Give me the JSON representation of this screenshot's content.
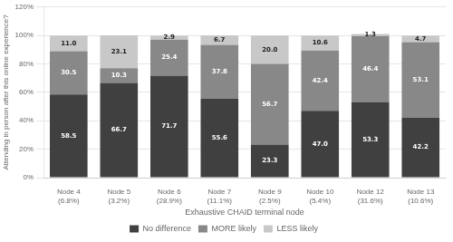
{
  "chart_data": {
    "type": "bar",
    "stacked": true,
    "categories": [
      "Node 4\n(6.8%)",
      "Node 5\n(3.2%)",
      "Node 6\n(28.9%)",
      "Node 7\n(11.1%)",
      "Node 9\n(2.5%)",
      "Node 10\n(5.4%)",
      "Node 12\n(31.6%)",
      "Node 13\n(10.6%)"
    ],
    "series": [
      {
        "name": "No difference",
        "color": "#404040",
        "values": [
          58.5,
          66.7,
          71.7,
          55.6,
          23.3,
          47.0,
          53.3,
          42.2
        ],
        "value_labels": [
          "58.5",
          "66.7",
          "71.7",
          "55.6",
          "23.3",
          "47.0",
          "53.3",
          "42.2"
        ]
      },
      {
        "name": "MORE likely",
        "color": "#888888",
        "values": [
          30.5,
          10.3,
          25.4,
          37.8,
          56.7,
          42.4,
          46.4,
          53.1
        ],
        "value_labels": [
          "30.5",
          "10.3",
          "25.4",
          "37.8",
          "56.7",
          "42.4",
          "46.4",
          "53.1"
        ]
      },
      {
        "name": "LESS likely",
        "color": "#c8c8c8",
        "values": [
          11.0,
          23.1,
          2.9,
          6.7,
          20.0,
          10.6,
          1.3,
          4.7
        ],
        "value_labels": [
          "11.0",
          "23.1",
          "2.9",
          "6.7",
          "20.0",
          "10.6",
          "1.3",
          "4.7"
        ]
      }
    ],
    "ylabel": "Attending in person after this online experience?",
    "xlabel": "Exhaustive CHAID terminal node",
    "ylim": [
      0,
      120
    ],
    "yticks": [
      {
        "value": 0,
        "label": "0%"
      },
      {
        "value": 20,
        "label": "20%"
      },
      {
        "value": 40,
        "label": "40%"
      },
      {
        "value": 60,
        "label": "60%"
      },
      {
        "value": 80,
        "label": "80%"
      },
      {
        "value": 100,
        "label": "100%"
      },
      {
        "value": 120,
        "label": "120%"
      }
    ],
    "grid": true,
    "legend": "bottom",
    "data_labels": true
  }
}
